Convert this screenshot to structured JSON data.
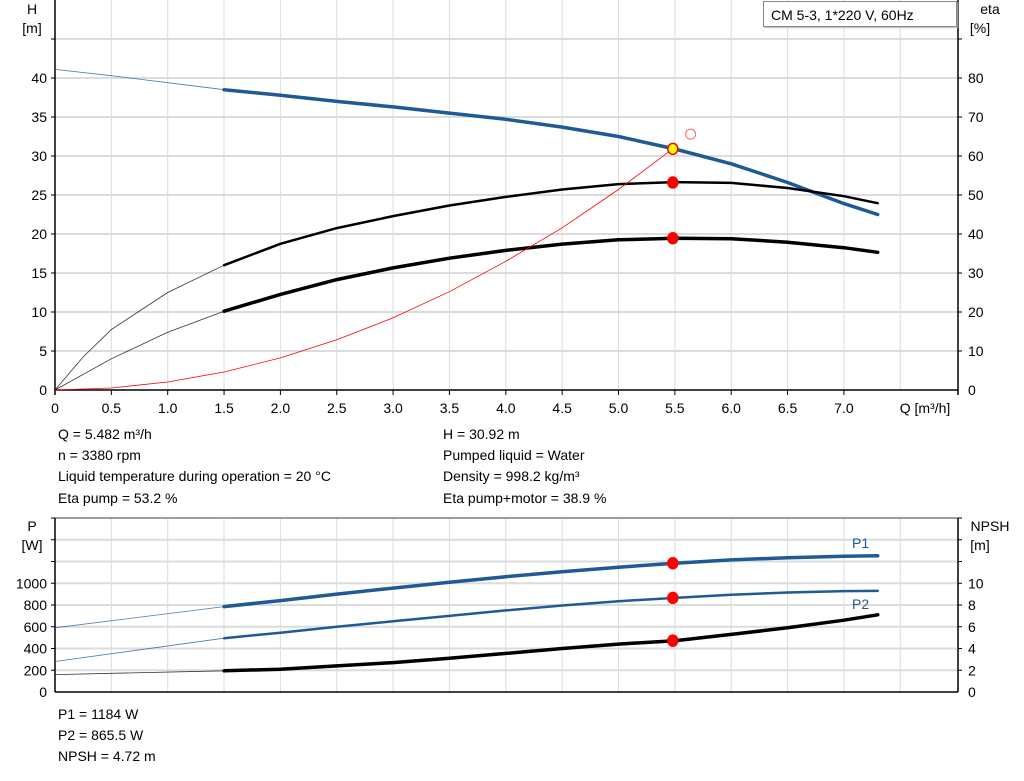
{
  "chart_data": [
    {
      "type": "line",
      "title": "CM 5-3, 1*220 V, 60Hz",
      "xlabel": "Q [m³/h]",
      "ylabel": [
        "H",
        "[m]"
      ],
      "y2label": [
        "eta",
        "[%]"
      ],
      "xlim": [
        0,
        7.5
      ],
      "ylim": [
        0,
        45
      ],
      "y2lim": [
        0,
        90
      ],
      "xticks": [
        "0",
        "0.5",
        "1.0",
        "1.5",
        "2.0",
        "2.5",
        "3.0",
        "3.5",
        "4.0",
        "4.5",
        "5.0",
        "5.5",
        "6.0",
        "6.5",
        "7.0"
      ],
      "yticks": [
        "0",
        "5",
        "10",
        "15",
        "20",
        "25",
        "30",
        "35",
        "40"
      ],
      "y2ticks": [
        "0",
        "10",
        "20",
        "30",
        "40",
        "50",
        "60",
        "70",
        "80"
      ],
      "grid": true,
      "series": [
        {
          "id": "head",
          "axis": "left",
          "color": "#1f5a96",
          "x": [
            0,
            0.5,
            1.0,
            1.5,
            2.0,
            2.5,
            3.0,
            3.5,
            4.0,
            4.5,
            5.0,
            5.5,
            6.0,
            6.5,
            7.0,
            7.3
          ],
          "y": [
            41.1,
            40.3,
            39.4,
            38.5,
            37.8,
            37.0,
            36.3,
            35.5,
            34.7,
            33.7,
            32.5,
            30.9,
            29.0,
            26.6,
            23.9,
            22.5
          ]
        },
        {
          "id": "eta-pump",
          "axis": "right",
          "color": "#000000",
          "x": [
            0,
            0.25,
            0.5,
            1.0,
            1.5,
            2.0,
            2.5,
            3.0,
            3.5,
            4.0,
            4.5,
            5.0,
            5.5,
            6.0,
            6.5,
            7.0,
            7.3
          ],
          "y": [
            0,
            8.5,
            15.5,
            25,
            32,
            37.5,
            41.5,
            44.6,
            47.3,
            49.5,
            51.4,
            52.8,
            53.3,
            53.1,
            51.8,
            49.7,
            47.9
          ]
        },
        {
          "id": "eta-pump-motor",
          "axis": "right",
          "color": "#000000",
          "x": [
            0,
            0.5,
            1.0,
            1.5,
            2.0,
            2.5,
            3.0,
            3.5,
            4.0,
            4.5,
            5.0,
            5.5,
            6.0,
            6.5,
            7.0,
            7.3
          ],
          "y": [
            0,
            8,
            14.8,
            20.2,
            24.5,
            28.3,
            31.3,
            33.8,
            35.8,
            37.4,
            38.5,
            38.9,
            38.8,
            37.9,
            36.5,
            35.3
          ]
        },
        {
          "id": "system-curve",
          "axis": "left",
          "color": "#ff0000",
          "x": [
            0,
            0.5,
            1.0,
            1.5,
            2.0,
            2.5,
            3.0,
            3.5,
            4.0,
            4.5,
            5.0,
            5.482
          ],
          "y": [
            0,
            0.26,
            1.03,
            2.31,
            4.12,
            6.43,
            9.26,
            12.6,
            16.5,
            20.8,
            25.7,
            30.92
          ]
        }
      ],
      "duty_point": {
        "Q": 5.482,
        "H": 30.92,
        "eta_pump": 53.2,
        "eta_pump_motor": 38.9
      },
      "marker_open": {
        "Q": 5.64,
        "H": 32.8
      }
    },
    {
      "type": "line",
      "ylabel": [
        "P",
        "[W]"
      ],
      "y2label": [
        "NPSH",
        "[m]"
      ],
      "xlim": [
        0,
        7.5
      ],
      "ylim": [
        0,
        1600
      ],
      "y2lim": [
        0,
        16
      ],
      "yticks": [
        "0",
        "200",
        "400",
        "600",
        "800",
        "1000"
      ],
      "y2ticks": [
        "0",
        "2",
        "4",
        "6",
        "8",
        "10"
      ],
      "grid": true,
      "series": [
        {
          "id": "p1",
          "name": "P1",
          "axis": "left",
          "color": "#1f5a96",
          "x": [
            0,
            1.5,
            2.0,
            2.5,
            3.0,
            3.5,
            4.0,
            4.5,
            5.0,
            5.5,
            6.0,
            6.5,
            7.0,
            7.3
          ],
          "y": [
            590,
            785,
            840,
            900,
            955,
            1010,
            1060,
            1105,
            1148,
            1184,
            1215,
            1235,
            1248,
            1252
          ]
        },
        {
          "id": "p2",
          "name": "P2",
          "axis": "left",
          "color": "#1f5a96",
          "x": [
            0,
            1.5,
            2.0,
            2.5,
            3.0,
            3.5,
            4.0,
            4.5,
            5.0,
            5.5,
            6.0,
            6.5,
            7.0,
            7.3
          ],
          "y": [
            280,
            495,
            545,
            600,
            650,
            700,
            750,
            795,
            835,
            865.5,
            895,
            915,
            928,
            930
          ]
        },
        {
          "id": "npsh",
          "axis": "right",
          "color": "#000000",
          "x": [
            0,
            1.5,
            2.0,
            2.5,
            3.0,
            3.5,
            4.0,
            4.5,
            5.0,
            5.5,
            6.0,
            6.5,
            7.0,
            7.3
          ],
          "y": [
            1.6,
            1.95,
            2.1,
            2.4,
            2.7,
            3.1,
            3.55,
            4.0,
            4.4,
            4.72,
            5.3,
            5.9,
            6.6,
            7.1
          ]
        }
      ],
      "duty_point": {
        "Q": 5.482,
        "P1": 1184,
        "P2": 865.5,
        "NPSH": 4.72
      }
    }
  ],
  "info": {
    "q": "Q = 5.482 m³/h",
    "n": "n = 3380 rpm",
    "temp": "Liquid temperature during operation = 20 °C",
    "eta_pump": "Eta pump = 53.2 %",
    "h": "H = 30.92 m",
    "liquid": "Pumped liquid = Water",
    "density": "Density = 998.2 kg/m³",
    "eta_pm": "Eta pump+motor = 38.9 %",
    "p1": "P1 = 1184 W",
    "p2": "P2 = 865.5 W",
    "npsh": "NPSH = 4.72 m"
  }
}
